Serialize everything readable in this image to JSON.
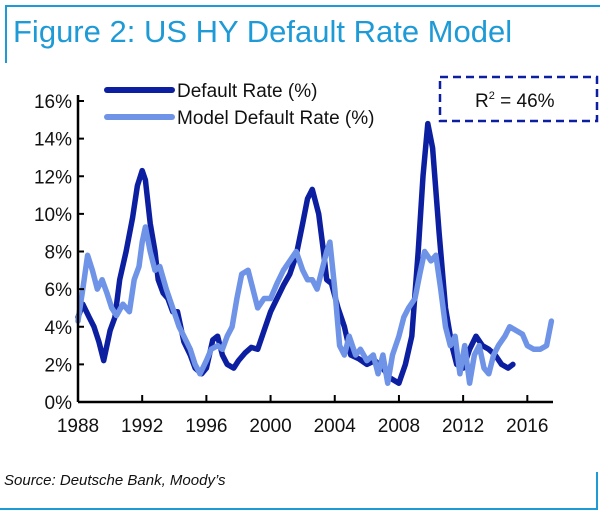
{
  "title": "Figure 2: US HY Default Rate Model",
  "source": "Source: Deutsche Bank, Moody’s",
  "annotation": {
    "label": "R",
    "sup": "2",
    "value": " = 46%"
  },
  "colors": {
    "frame": "#1e9ad6",
    "default_rate": "#0c1fa0",
    "model": "#6f93e6"
  },
  "chart_data": {
    "type": "line",
    "title": "Figure 2: US HY Default Rate Model",
    "xlabel": "",
    "ylabel": "",
    "xlim": [
      1988,
      2017.6
    ],
    "ylim": [
      0,
      16
    ],
    "xticks": [
      1988,
      1992,
      1996,
      2000,
      2004,
      2008,
      2012,
      2016
    ],
    "xtick_labels": [
      "1988",
      "1992",
      "1996",
      "2000",
      "2004",
      "2008",
      "2012",
      "2016"
    ],
    "yticks": [
      0,
      2,
      4,
      6,
      8,
      10,
      12,
      14,
      16
    ],
    "ytick_labels": [
      "0%",
      "2%",
      "4%",
      "6%",
      "8%",
      "10%",
      "12%",
      "14%",
      "16%"
    ],
    "legend_position": "top-left",
    "grid": false,
    "annotations": [
      "R² = 46%"
    ],
    "series": [
      {
        "name": "Default Rate (%)",
        "x": [
          1988.0,
          1988.3,
          1988.7,
          1989.0,
          1989.3,
          1989.6,
          1990.0,
          1990.3,
          1990.6,
          1991.0,
          1991.4,
          1991.7,
          1992.0,
          1992.2,
          1992.5,
          1992.8,
          1993.0,
          1993.3,
          1993.6,
          1993.9,
          1994.2,
          1994.6,
          1995.0,
          1995.3,
          1995.7,
          1996.0,
          1996.4,
          1996.7,
          1997.0,
          1997.3,
          1997.7,
          1998.0,
          1998.4,
          1998.8,
          1999.2,
          1999.6,
          2000.0,
          2000.4,
          2000.8,
          2001.2,
          2001.6,
          2002.0,
          2002.3,
          2002.6,
          2003.0,
          2003.3,
          2003.5,
          2003.8,
          2004.2,
          2004.6,
          2005.0,
          2005.5,
          2006.0,
          2006.5,
          2007.0,
          2007.4,
          2008.0,
          2008.4,
          2008.8,
          2009.2,
          2009.5,
          2009.8,
          2010.1,
          2010.5,
          2010.9,
          2011.3,
          2011.6,
          2012.0,
          2012.4,
          2012.8,
          2013.2,
          2013.6,
          2014.0,
          2014.4,
          2014.8,
          2015.1
        ],
        "values": [
          4.5,
          5.2,
          4.5,
          4.0,
          3.2,
          2.2,
          3.8,
          4.5,
          6.5,
          8.0,
          9.8,
          11.5,
          12.3,
          11.8,
          9.5,
          8.0,
          6.5,
          5.8,
          5.5,
          4.8,
          4.8,
          3.2,
          2.5,
          1.8,
          1.5,
          1.8,
          3.3,
          3.5,
          2.5,
          2.0,
          1.8,
          2.2,
          2.6,
          2.9,
          2.8,
          3.8,
          4.8,
          5.5,
          6.2,
          6.8,
          7.8,
          9.5,
          10.8,
          11.3,
          10.0,
          8.0,
          6.5,
          6.3,
          5.0,
          4.0,
          2.5,
          2.3,
          2.0,
          2.2,
          1.8,
          1.3,
          1.0,
          2.0,
          3.5,
          8.0,
          12.0,
          14.8,
          13.5,
          9.0,
          5.0,
          3.0,
          2.0,
          1.8,
          2.8,
          3.5,
          3.0,
          2.8,
          2.5,
          2.0,
          1.8,
          2.0
        ]
      },
      {
        "name": "Model Default Rate (%)",
        "x": [
          1988.0,
          1988.3,
          1988.6,
          1988.9,
          1989.2,
          1989.5,
          1989.8,
          1990.1,
          1990.4,
          1990.8,
          1991.2,
          1991.5,
          1991.8,
          1992.0,
          1992.2,
          1992.5,
          1992.8,
          1993.1,
          1993.5,
          1993.9,
          1994.3,
          1994.6,
          1995.0,
          1995.3,
          1995.6,
          1996.0,
          1996.3,
          1996.7,
          1997.0,
          1997.3,
          1997.6,
          1997.9,
          1998.2,
          1998.6,
          1998.9,
          1999.2,
          1999.6,
          2000.0,
          2000.4,
          2000.8,
          2001.2,
          2001.6,
          2002.0,
          2002.3,
          2002.6,
          2002.9,
          2003.2,
          2003.5,
          2003.7,
          2004.0,
          2004.3,
          2004.6,
          2004.9,
          2005.3,
          2005.6,
          2006.0,
          2006.4,
          2006.7,
          2007.0,
          2007.3,
          2007.6,
          2008.0,
          2008.3,
          2008.6,
          2009.0,
          2009.3,
          2009.6,
          2010.0,
          2010.3,
          2010.6,
          2010.9,
          2011.2,
          2011.5,
          2011.8,
          2012.1,
          2012.4,
          2012.7,
          2013.0,
          2013.3,
          2013.6,
          2013.9,
          2014.2,
          2014.6,
          2014.9,
          2015.3,
          2015.7,
          2016.0,
          2016.4,
          2016.8,
          2017.2,
          2017.5
        ],
        "values": [
          4.3,
          6.0,
          7.8,
          7.0,
          6.0,
          6.5,
          5.8,
          5.0,
          4.6,
          5.2,
          4.8,
          6.5,
          7.2,
          8.5,
          9.3,
          8.0,
          7.0,
          7.2,
          6.0,
          5.0,
          4.0,
          3.5,
          2.8,
          2.0,
          1.5,
          2.2,
          2.8,
          3.0,
          2.8,
          3.5,
          4.0,
          5.5,
          6.8,
          7.0,
          6.0,
          5.0,
          5.5,
          5.5,
          6.3,
          7.0,
          7.5,
          8.0,
          7.0,
          6.5,
          6.5,
          6.0,
          7.0,
          8.0,
          8.5,
          6.0,
          3.0,
          2.5,
          3.5,
          2.5,
          2.8,
          2.2,
          2.5,
          1.5,
          2.5,
          1.0,
          2.5,
          3.5,
          4.5,
          5.0,
          5.5,
          6.8,
          8.0,
          7.5,
          7.8,
          6.0,
          4.0,
          3.0,
          3.5,
          1.5,
          3.0,
          1.0,
          2.5,
          3.0,
          1.8,
          1.5,
          2.5,
          3.0,
          3.5,
          4.0,
          3.8,
          3.6,
          3.0,
          2.8,
          2.8,
          3.0,
          4.3
        ]
      }
    ]
  }
}
